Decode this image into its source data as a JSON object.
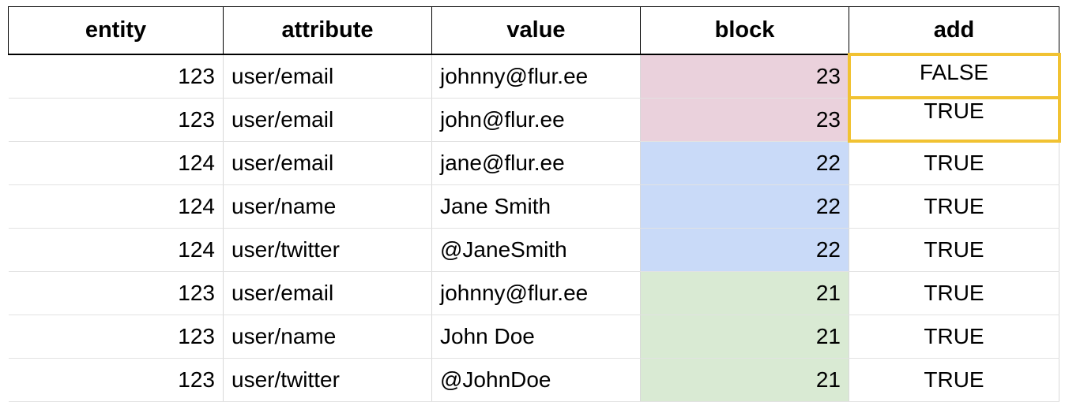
{
  "table": {
    "headers": {
      "entity": "entity",
      "attribute": "attribute",
      "value": "value",
      "block": "block",
      "add": "add"
    },
    "rows": [
      {
        "entity": "123",
        "attribute": "user/email",
        "value": "johnny@flur.ee",
        "block": "23",
        "add": "FALSE"
      },
      {
        "entity": "123",
        "attribute": "user/email",
        "value": "john@flur.ee",
        "block": "23",
        "add": "TRUE"
      },
      {
        "entity": "124",
        "attribute": "user/email",
        "value": "jane@flur.ee",
        "block": "22",
        "add": "TRUE"
      },
      {
        "entity": "124",
        "attribute": "user/name",
        "value": "Jane Smith",
        "block": "22",
        "add": "TRUE"
      },
      {
        "entity": "124",
        "attribute": "user/twitter",
        "value": "@JaneSmith",
        "block": "22",
        "add": "TRUE"
      },
      {
        "entity": "123",
        "attribute": "user/email",
        "value": "johnny@flur.ee",
        "block": "21",
        "add": "TRUE"
      },
      {
        "entity": "123",
        "attribute": "user/name",
        "value": "John Doe",
        "block": "21",
        "add": "TRUE"
      },
      {
        "entity": "123",
        "attribute": "user/twitter",
        "value": "@JohnDoe",
        "block": "21",
        "add": "TRUE"
      }
    ]
  },
  "colors": {
    "block_23": "#ead1dc",
    "block_22": "#c9daf8",
    "block_21": "#d9ead3",
    "highlight_border": "#f1c232"
  }
}
